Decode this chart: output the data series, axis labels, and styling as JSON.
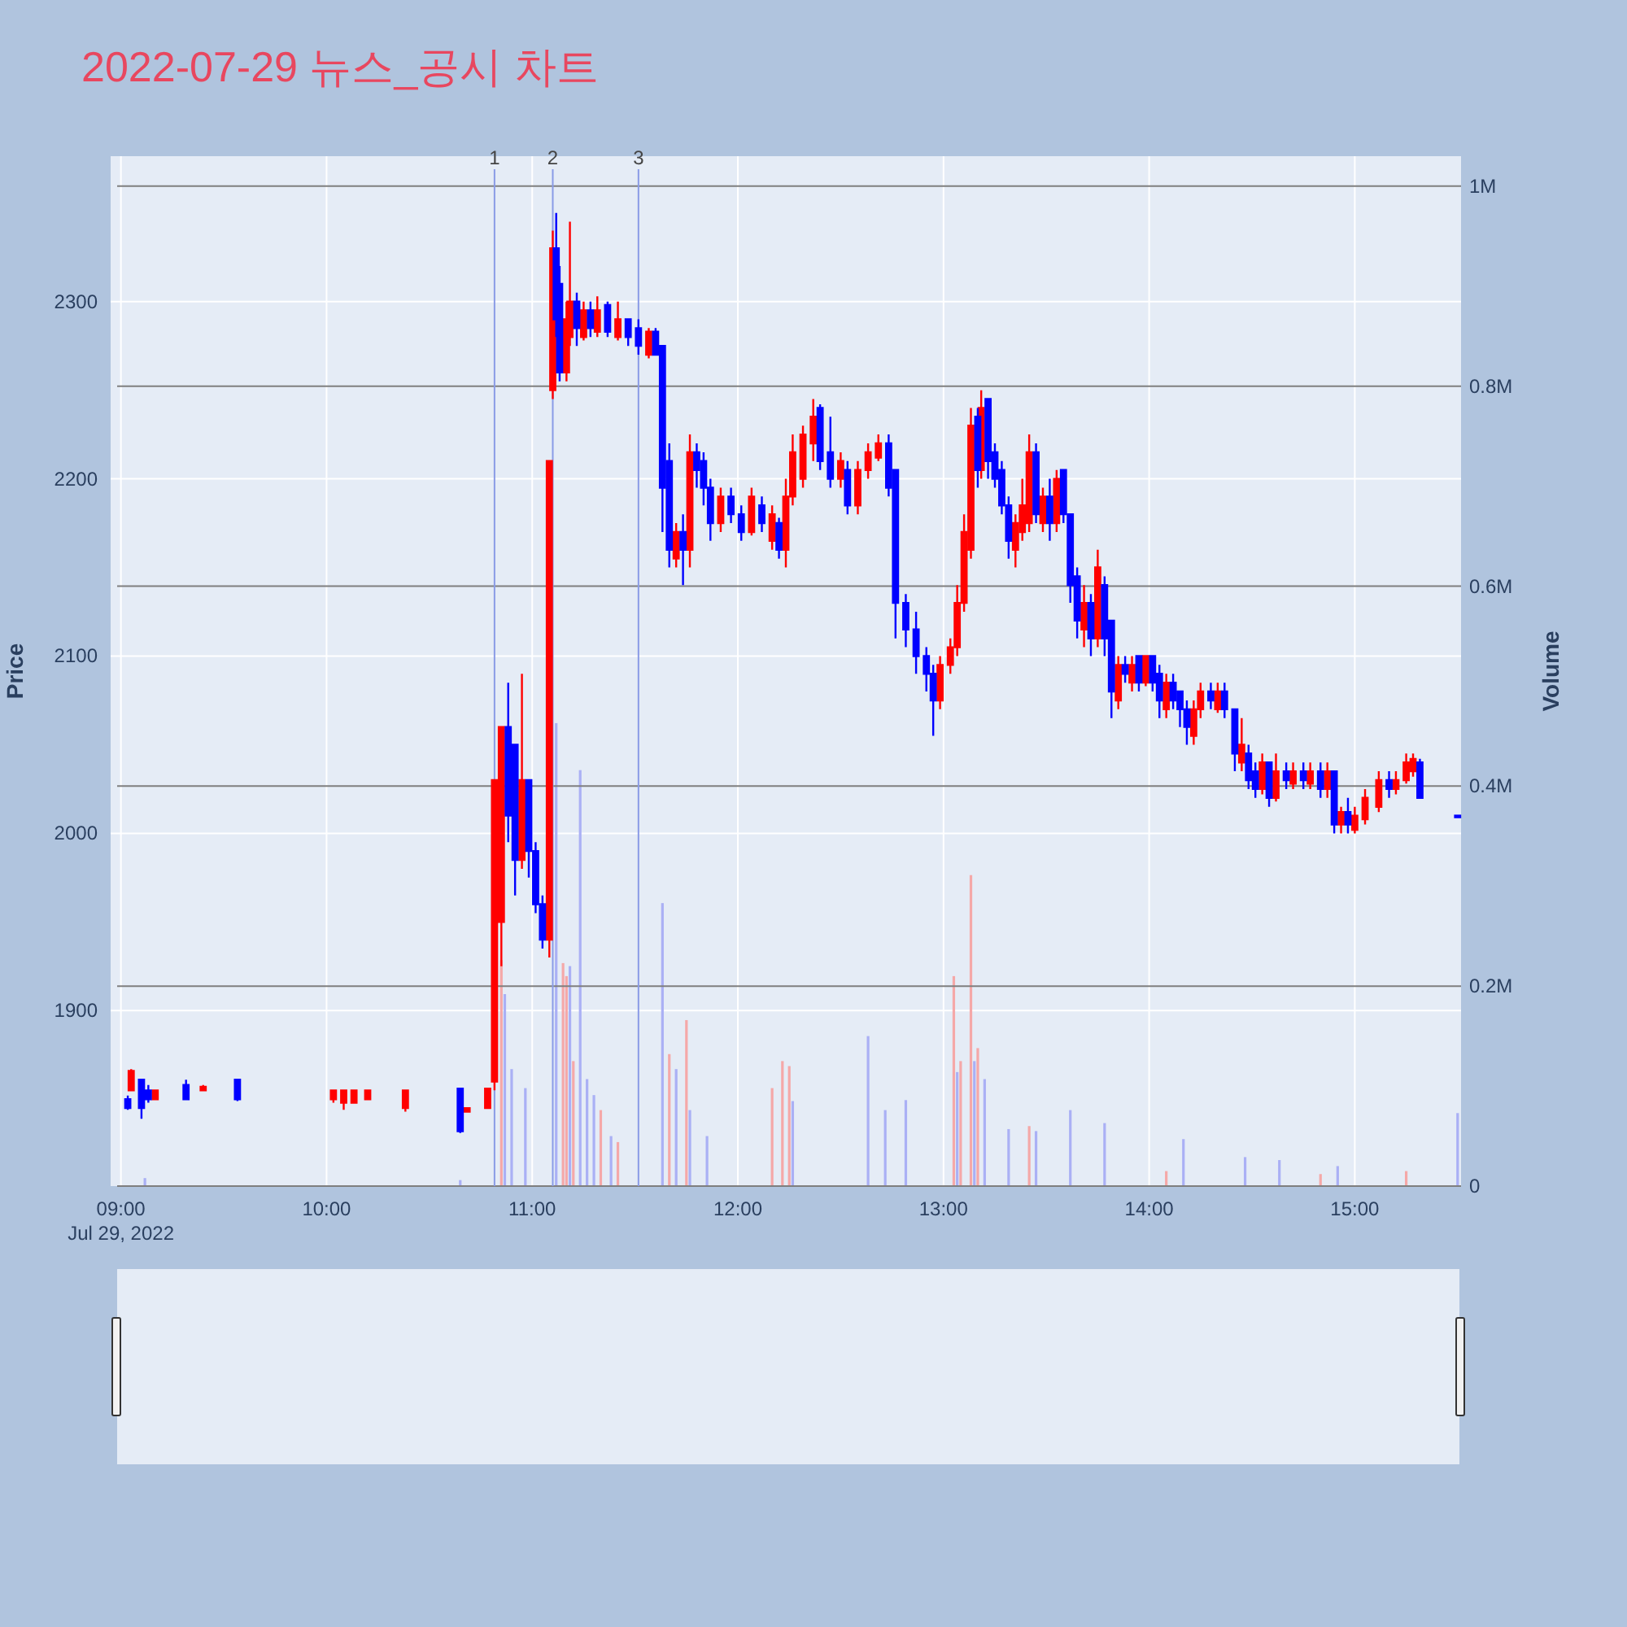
{
  "chart_data": {
    "type": "candlestick",
    "title": "2022-07-29 뉴스_공시 차트",
    "ylabel": "Price",
    "y2label": "Volume",
    "annotations": [
      "Jul 29, 2022"
    ],
    "xlim": [
      "2022-07-29T08:57",
      "2022-07-29T15:31"
    ],
    "xticks": [
      {
        "value": "2022-07-29T09:00",
        "label": "09:00"
      },
      {
        "value": "2022-07-29T10:00",
        "label": "10:00"
      },
      {
        "value": "2022-07-29T11:00",
        "label": "11:00"
      },
      {
        "value": "2022-07-29T12:00",
        "label": "12:00"
      },
      {
        "value": "2022-07-29T13:00",
        "label": "13:00"
      },
      {
        "value": "2022-07-29T14:00",
        "label": "14:00"
      },
      {
        "value": "2022-07-29T15:00",
        "label": "15:00"
      }
    ],
    "ylim": [
      1801,
      2382
    ],
    "yticks": [
      1900,
      2000,
      2100,
      2200,
      2300
    ],
    "y2lim": [
      0,
      1030000
    ],
    "y2ticks": [
      0,
      {
        "value": 200000,
        "label": "0.2M"
      },
      {
        "value": 400000,
        "label": "0.4M"
      },
      {
        "value": 600000,
        "label": "0.6M"
      },
      {
        "value": 800000,
        "label": "0.8M"
      },
      {
        "value": 1000000,
        "label": "1M"
      }
    ],
    "grid": true,
    "ref_lines": [
      {
        "axis": "x",
        "value": "2022-07-29T10:49",
        "label": "1",
        "color": "#8a9be6"
      },
      {
        "axis": "x",
        "value": "2022-07-29T11:06",
        "label": "2",
        "color": "#8a9be6"
      },
      {
        "axis": "x",
        "value": "2022-07-29T11:31",
        "label": "3",
        "color": "#8a9be6"
      }
    ],
    "series": [
      {
        "color": "#ff0000",
        "x": [
          "2022-07-29T09:03",
          "2022-07-29T09:10",
          "2022-07-29T09:24",
          "2022-07-29T10:02",
          "2022-07-29T10:05",
          "2022-07-29T10:08",
          "2022-07-29T10:12",
          "2022-07-29T10:23",
          "2022-07-29T10:41",
          "2022-07-29T10:47",
          "2022-07-29T10:49",
          "2022-07-29T10:51",
          "2022-07-29T10:57",
          "2022-07-29T11:05",
          "2022-07-29T11:06",
          "2022-07-29T11:10",
          "2022-07-29T11:11",
          "2022-07-29T11:15",
          "2022-07-29T11:19",
          "2022-07-29T11:25",
          "2022-07-29T11:34",
          "2022-07-29T11:42",
          "2022-07-29T11:46",
          "2022-07-29T11:55",
          "2022-07-29T12:04",
          "2022-07-29T12:10",
          "2022-07-29T12:14",
          "2022-07-29T12:16",
          "2022-07-29T12:19",
          "2022-07-29T12:22",
          "2022-07-29T12:30",
          "2022-07-29T12:35",
          "2022-07-29T12:38",
          "2022-07-29T12:41",
          "2022-07-29T12:59",
          "2022-07-29T13:02",
          "2022-07-29T13:04",
          "2022-07-29T13:06",
          "2022-07-29T13:08",
          "2022-07-29T13:11",
          "2022-07-29T13:21",
          "2022-07-29T13:23",
          "2022-07-29T13:25",
          "2022-07-29T13:29",
          "2022-07-29T13:33",
          "2022-07-29T13:41",
          "2022-07-29T13:45",
          "2022-07-29T13:51",
          "2022-07-29T13:55",
          "2022-07-29T13:59",
          "2022-07-29T14:05",
          "2022-07-29T14:13",
          "2022-07-29T14:15",
          "2022-07-29T14:20",
          "2022-07-29T14:27",
          "2022-07-29T14:33",
          "2022-07-29T14:37",
          "2022-07-29T14:42",
          "2022-07-29T14:47",
          "2022-07-29T14:52",
          "2022-07-29T14:56",
          "2022-07-29T15:00",
          "2022-07-29T15:03",
          "2022-07-29T15:07",
          "2022-07-29T15:12",
          "2022-07-29T15:15",
          "2022-07-29T15:17"
        ],
        "ohlc": [
          [
            1855,
            1867,
            1855,
            1866
          ],
          [
            1850,
            1855,
            1850,
            1855
          ],
          [
            1855,
            1858,
            1855,
            1857
          ],
          [
            1850,
            1855,
            1848,
            1855
          ],
          [
            1848,
            1855,
            1844,
            1855
          ],
          [
            1848,
            1855,
            1848,
            1855
          ],
          [
            1850,
            1855,
            1850,
            1855
          ],
          [
            1845,
            1855,
            1843,
            1855
          ],
          [
            1843,
            1845,
            1843,
            1845
          ],
          [
            1845,
            1856,
            1845,
            1856
          ],
          [
            1860,
            2030,
            1855,
            2030
          ],
          [
            1950,
            2060,
            1925,
            2060
          ],
          [
            1985,
            2090,
            1980,
            2030
          ],
          [
            1940,
            2210,
            1930,
            2210
          ],
          [
            2250,
            2340,
            2245,
            2330
          ],
          [
            2260,
            2300,
            2255,
            2290
          ],
          [
            2280,
            2345,
            2275,
            2300
          ],
          [
            2280,
            2300,
            2278,
            2295
          ],
          [
            2283,
            2303,
            2280,
            2295
          ],
          [
            2280,
            2300,
            2278,
            2290
          ],
          [
            2270,
            2285,
            2268,
            2283
          ],
          [
            2155,
            2175,
            2150,
            2170
          ],
          [
            2160,
            2225,
            2150,
            2215
          ],
          [
            2175,
            2195,
            2170,
            2190
          ],
          [
            2170,
            2195,
            2168,
            2190
          ],
          [
            2165,
            2185,
            2160,
            2180
          ],
          [
            2160,
            2200,
            2150,
            2190
          ],
          [
            2190,
            2225,
            2185,
            2215
          ],
          [
            2200,
            2230,
            2195,
            2225
          ],
          [
            2220,
            2245,
            2210,
            2235
          ],
          [
            2200,
            2215,
            2195,
            2210
          ],
          [
            2185,
            2210,
            2180,
            2205
          ],
          [
            2205,
            2220,
            2200,
            2215
          ],
          [
            2212,
            2225,
            2210,
            2220
          ],
          [
            2075,
            2100,
            2070,
            2095
          ],
          [
            2095,
            2110,
            2090,
            2105
          ],
          [
            2105,
            2140,
            2100,
            2130
          ],
          [
            2130,
            2180,
            2125,
            2170
          ],
          [
            2160,
            2240,
            2155,
            2230
          ],
          [
            2205,
            2250,
            2200,
            2240
          ],
          [
            2160,
            2180,
            2150,
            2175
          ],
          [
            2170,
            2200,
            2165,
            2185
          ],
          [
            2175,
            2225,
            2170,
            2215
          ],
          [
            2175,
            2195,
            2170,
            2190
          ],
          [
            2175,
            2205,
            2170,
            2200
          ],
          [
            2115,
            2140,
            2105,
            2130
          ],
          [
            2110,
            2160,
            2105,
            2150
          ],
          [
            2075,
            2100,
            2070,
            2095
          ],
          [
            2085,
            2100,
            2080,
            2095
          ],
          [
            2085,
            2100,
            2083,
            2100
          ],
          [
            2070,
            2090,
            2065,
            2085
          ],
          [
            2055,
            2075,
            2050,
            2070
          ],
          [
            2070,
            2085,
            2065,
            2080
          ],
          [
            2070,
            2085,
            2068,
            2080
          ],
          [
            2040,
            2065,
            2035,
            2050
          ],
          [
            2025,
            2045,
            2022,
            2040
          ],
          [
            2020,
            2045,
            2018,
            2035
          ],
          [
            2028,
            2040,
            2025,
            2035
          ],
          [
            2028,
            2040,
            2025,
            2035
          ],
          [
            2025,
            2040,
            2020,
            2035
          ],
          [
            2005,
            2015,
            2000,
            2012
          ],
          [
            2002,
            2015,
            2000,
            2010
          ],
          [
            2008,
            2025,
            2005,
            2020
          ],
          [
            2015,
            2035,
            2012,
            2030
          ],
          [
            2025,
            2035,
            2022,
            2030
          ],
          [
            2030,
            2045,
            2028,
            2040
          ],
          [
            2035,
            2045,
            2032,
            2042
          ]
        ]
      },
      {
        "color": "#0000ff",
        "x": [
          "2022-07-29T09:02",
          "2022-07-29T09:06",
          "2022-07-29T09:08",
          "2022-07-29T09:19",
          "2022-07-29T09:34",
          "2022-07-29T10:39",
          "2022-07-29T10:53",
          "2022-07-29T10:55",
          "2022-07-29T10:59",
          "2022-07-29T11:01",
          "2022-07-29T11:03",
          "2022-07-29T11:07",
          "2022-07-29T11:08",
          "2022-07-29T11:13",
          "2022-07-29T11:17",
          "2022-07-29T11:22",
          "2022-07-29T11:28",
          "2022-07-29T11:31",
          "2022-07-29T11:36",
          "2022-07-29T11:38",
          "2022-07-29T11:40",
          "2022-07-29T11:44",
          "2022-07-29T11:48",
          "2022-07-29T11:50",
          "2022-07-29T11:52",
          "2022-07-29T11:58",
          "2022-07-29T12:01",
          "2022-07-29T12:07",
          "2022-07-29T12:12",
          "2022-07-29T12:24",
          "2022-07-29T12:27",
          "2022-07-29T12:32",
          "2022-07-29T12:44",
          "2022-07-29T12:46",
          "2022-07-29T12:49",
          "2022-07-29T12:52",
          "2022-07-29T12:55",
          "2022-07-29T12:57",
          "2022-07-29T13:10",
          "2022-07-29T13:13",
          "2022-07-29T13:15",
          "2022-07-29T13:17",
          "2022-07-29T13:19",
          "2022-07-29T13:27",
          "2022-07-29T13:31",
          "2022-07-29T13:35",
          "2022-07-29T13:37",
          "2022-07-29T13:39",
          "2022-07-29T13:43",
          "2022-07-29T13:47",
          "2022-07-29T13:49",
          "2022-07-29T13:53",
          "2022-07-29T13:57",
          "2022-07-29T14:01",
          "2022-07-29T14:03",
          "2022-07-29T14:07",
          "2022-07-29T14:09",
          "2022-07-29T14:11",
          "2022-07-29T14:18",
          "2022-07-29T14:22",
          "2022-07-29T14:25",
          "2022-07-29T14:29",
          "2022-07-29T14:31",
          "2022-07-29T14:35",
          "2022-07-29T14:40",
          "2022-07-29T14:45",
          "2022-07-29T14:50",
          "2022-07-29T14:54",
          "2022-07-29T14:58",
          "2022-07-29T15:10",
          "2022-07-29T15:19",
          "2022-07-29T15:30"
        ],
        "ohlc": [
          [
            1850,
            1852,
            1844,
            1845
          ],
          [
            1861,
            1861,
            1839,
            1845
          ],
          [
            1855,
            1858,
            1848,
            1850
          ],
          [
            1858,
            1861,
            1850,
            1850
          ],
          [
            1861,
            1861,
            1849,
            1850
          ],
          [
            1856,
            1856,
            1831,
            1832
          ],
          [
            2060,
            2085,
            1995,
            2010
          ],
          [
            2050,
            2050,
            1965,
            1985
          ],
          [
            2030,
            2030,
            1975,
            1990
          ],
          [
            1990,
            1995,
            1955,
            1960
          ],
          [
            1960,
            1965,
            1935,
            1940
          ],
          [
            2330,
            2350,
            2280,
            2290
          ],
          [
            2310,
            2320,
            2255,
            2260
          ],
          [
            2300,
            2305,
            2275,
            2285
          ],
          [
            2295,
            2300,
            2280,
            2285
          ],
          [
            2298,
            2300,
            2280,
            2283
          ],
          [
            2290,
            2290,
            2275,
            2280
          ],
          [
            2285,
            2290,
            2270,
            2275
          ],
          [
            2283,
            2285,
            2270,
            2270
          ],
          [
            2275,
            2275,
            2170,
            2195
          ],
          [
            2210,
            2220,
            2150,
            2160
          ],
          [
            2170,
            2180,
            2140,
            2160
          ],
          [
            2215,
            2220,
            2195,
            2205
          ],
          [
            2210,
            2215,
            2185,
            2195
          ],
          [
            2195,
            2200,
            2165,
            2175
          ],
          [
            2190,
            2195,
            2175,
            2180
          ],
          [
            2180,
            2185,
            2165,
            2170
          ],
          [
            2185,
            2190,
            2170,
            2175
          ],
          [
            2175,
            2178,
            2155,
            2160
          ],
          [
            2240,
            2242,
            2205,
            2210
          ],
          [
            2215,
            2235,
            2195,
            2200
          ],
          [
            2205,
            2210,
            2180,
            2185
          ],
          [
            2220,
            2225,
            2190,
            2195
          ],
          [
            2205,
            2205,
            2110,
            2130
          ],
          [
            2130,
            2135,
            2105,
            2115
          ],
          [
            2115,
            2125,
            2090,
            2100
          ],
          [
            2100,
            2105,
            2080,
            2090
          ],
          [
            2090,
            2095,
            2055,
            2075
          ],
          [
            2235,
            2240,
            2195,
            2205
          ],
          [
            2245,
            2245,
            2200,
            2210
          ],
          [
            2215,
            2220,
            2195,
            2200
          ],
          [
            2205,
            2210,
            2180,
            2185
          ],
          [
            2185,
            2190,
            2155,
            2165
          ],
          [
            2215,
            2220,
            2175,
            2180
          ],
          [
            2190,
            2200,
            2165,
            2175
          ],
          [
            2205,
            2205,
            2175,
            2180
          ],
          [
            2180,
            2180,
            2130,
            2140
          ],
          [
            2145,
            2150,
            2110,
            2120
          ],
          [
            2130,
            2135,
            2100,
            2110
          ],
          [
            2140,
            2145,
            2100,
            2110
          ],
          [
            2120,
            2120,
            2065,
            2080
          ],
          [
            2095,
            2100,
            2085,
            2090
          ],
          [
            2100,
            2100,
            2080,
            2085
          ],
          [
            2100,
            2100,
            2080,
            2085
          ],
          [
            2090,
            2095,
            2065,
            2075
          ],
          [
            2085,
            2090,
            2070,
            2075
          ],
          [
            2080,
            2080,
            2060,
            2070
          ],
          [
            2070,
            2075,
            2050,
            2060
          ],
          [
            2080,
            2085,
            2070,
            2075
          ],
          [
            2080,
            2085,
            2065,
            2070
          ],
          [
            2070,
            2070,
            2035,
            2045
          ],
          [
            2045,
            2050,
            2025,
            2030
          ],
          [
            2035,
            2040,
            2020,
            2025
          ],
          [
            2040,
            2040,
            2015,
            2020
          ],
          [
            2035,
            2040,
            2025,
            2030
          ],
          [
            2035,
            2040,
            2025,
            2030
          ],
          [
            2035,
            2040,
            2020,
            2025
          ],
          [
            2035,
            2035,
            2000,
            2005
          ],
          [
            2012,
            2020,
            2000,
            2005
          ],
          [
            2030,
            2035,
            2020,
            2025
          ],
          [
            2040,
            2042,
            2020,
            2020
          ],
          [
            2010,
            2010,
            2010,
            2010
          ]
        ]
      },
      {
        "type": "bar",
        "axis": "y2",
        "color": "#f5a8a8",
        "x": [
          "2022-07-29T10:51",
          "2022-07-29T11:09",
          "2022-07-29T11:10",
          "2022-07-29T11:12",
          "2022-07-29T11:20",
          "2022-07-29T11:25",
          "2022-07-29T11:40",
          "2022-07-29T11:45",
          "2022-07-29T12:10",
          "2022-07-29T12:13",
          "2022-07-29T12:15",
          "2022-07-29T13:03",
          "2022-07-29T13:05",
          "2022-07-29T13:08",
          "2022-07-29T13:10",
          "2022-07-29T13:25",
          "2022-07-29T14:05",
          "2022-07-29T14:50",
          "2022-07-29T15:15"
        ],
        "values": [
          226000,
          223000,
          210000,
          125000,
          76000,
          44000,
          132000,
          166000,
          98000,
          125000,
          120000,
          210000,
          125000,
          311000,
          138000,
          60000,
          15000,
          12000,
          15000
        ]
      },
      {
        "type": "bar",
        "axis": "y2",
        "color": "#aab0f5",
        "x": [
          "2022-07-29T09:07",
          "2022-07-29T10:39",
          "2022-07-29T10:52",
          "2022-07-29T10:54",
          "2022-07-29T10:58",
          "2022-07-29T11:07",
          "2022-07-29T11:11",
          "2022-07-29T11:14",
          "2022-07-29T11:16",
          "2022-07-29T11:18",
          "2022-07-29T11:23",
          "2022-07-29T11:38",
          "2022-07-29T11:42",
          "2022-07-29T11:46",
          "2022-07-29T11:51",
          "2022-07-29T12:16",
          "2022-07-29T12:38",
          "2022-07-29T12:43",
          "2022-07-29T12:49",
          "2022-07-29T13:04",
          "2022-07-29T13:09",
          "2022-07-29T13:12",
          "2022-07-29T13:19",
          "2022-07-29T13:27",
          "2022-07-29T13:37",
          "2022-07-29T13:47",
          "2022-07-29T14:10",
          "2022-07-29T14:28",
          "2022-07-29T14:38",
          "2022-07-29T14:55",
          "2022-07-29T15:30"
        ],
        "values": [
          8000,
          6000,
          192000,
          117000,
          98000,
          463000,
          220000,
          416000,
          107000,
          91000,
          50000,
          283000,
          117000,
          76000,
          50000,
          85000,
          150000,
          76000,
          86000,
          114000,
          125000,
          107000,
          57000,
          55000,
          76000,
          63000,
          47000,
          29000,
          26000,
          20000,
          73000
        ]
      }
    ]
  }
}
